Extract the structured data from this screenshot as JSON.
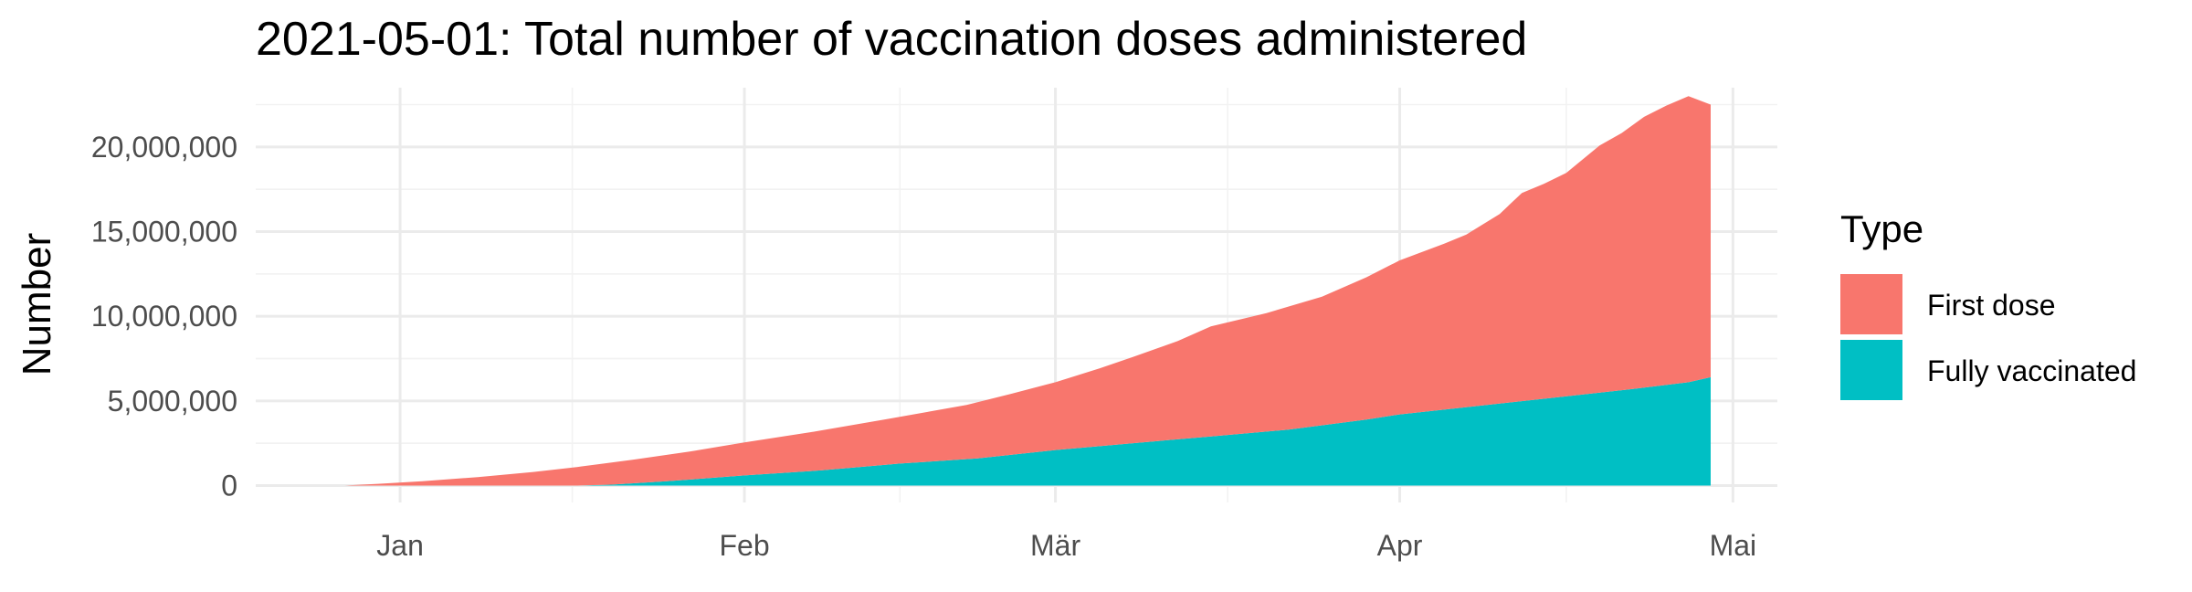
{
  "chart_data": {
    "type": "area",
    "stacked": true,
    "title": "2021-05-01: Total number of vaccination doses administered",
    "xlabel": "",
    "ylabel": "Number",
    "x_ticks": [
      {
        "label": "Jan",
        "date": "2021-01-01"
      },
      {
        "label": "Feb",
        "date": "2021-02-01"
      },
      {
        "label": "Mär",
        "date": "2021-03-01"
      },
      {
        "label": "Apr",
        "date": "2021-04-01"
      },
      {
        "label": "Mai",
        "date": "2021-05-01"
      }
    ],
    "y_ticks": [
      {
        "label": "0",
        "value": 0
      },
      {
        "label": "5,000,000",
        "value": 5000000
      },
      {
        "label": "10,000,000",
        "value": 10000000
      },
      {
        "label": "15,000,000",
        "value": 15000000
      },
      {
        "label": "20,000,000",
        "value": 20000000
      }
    ],
    "xlim": [
      "2020-12-19",
      "2021-05-05"
    ],
    "ylim": [
      -1000000,
      23500000
    ],
    "grid": true,
    "legend": {
      "title": "Type",
      "position": "right"
    },
    "series": [
      {
        "name": "Fully vaccinated",
        "color": "#00BFC4",
        "points": [
          [
            "2020-12-27",
            0
          ],
          [
            "2021-01-17",
            0
          ],
          [
            "2021-01-20",
            50000
          ],
          [
            "2021-01-25",
            250000
          ],
          [
            "2021-02-01",
            600000
          ],
          [
            "2021-02-08",
            900000
          ],
          [
            "2021-02-15",
            1300000
          ],
          [
            "2021-02-22",
            1600000
          ],
          [
            "2021-03-01",
            2100000
          ],
          [
            "2021-03-08",
            2500000
          ],
          [
            "2021-03-15",
            2900000
          ],
          [
            "2021-03-22",
            3300000
          ],
          [
            "2021-03-29",
            3900000
          ],
          [
            "2021-04-01",
            4200000
          ],
          [
            "2021-04-08",
            4700000
          ],
          [
            "2021-04-15",
            5200000
          ],
          [
            "2021-04-22",
            5700000
          ],
          [
            "2021-04-27",
            6100000
          ],
          [
            "2021-04-29",
            6400000
          ]
        ]
      },
      {
        "name": "First dose",
        "color": "#F8766D",
        "points": [
          [
            "2020-12-27",
            0
          ],
          [
            "2020-12-30",
            100000
          ],
          [
            "2021-01-03",
            250000
          ],
          [
            "2021-01-08",
            500000
          ],
          [
            "2021-01-13",
            800000
          ],
          [
            "2021-01-17",
            1100000
          ],
          [
            "2021-01-22",
            1400000
          ],
          [
            "2021-01-27",
            1650000
          ],
          [
            "2021-02-01",
            1950000
          ],
          [
            "2021-02-07",
            2300000
          ],
          [
            "2021-02-14",
            2700000
          ],
          [
            "2021-02-21",
            3200000
          ],
          [
            "2021-02-25",
            3600000
          ],
          [
            "2021-03-01",
            4000000
          ],
          [
            "2021-03-05",
            4600000
          ],
          [
            "2021-03-08",
            5100000
          ],
          [
            "2021-03-12",
            5800000
          ],
          [
            "2021-03-15",
            6500000
          ],
          [
            "2021-03-20",
            7000000
          ],
          [
            "2021-03-25",
            7600000
          ],
          [
            "2021-03-29",
            8400000
          ],
          [
            "2021-04-01",
            9100000
          ],
          [
            "2021-04-05",
            9800000
          ],
          [
            "2021-04-07",
            10200000
          ],
          [
            "2021-04-10",
            11200000
          ],
          [
            "2021-04-12",
            12300000
          ],
          [
            "2021-04-14",
            12700000
          ],
          [
            "2021-04-16",
            13200000
          ],
          [
            "2021-04-19",
            14600000
          ],
          [
            "2021-04-21",
            15200000
          ],
          [
            "2021-04-23",
            16000000
          ],
          [
            "2021-04-25",
            16500000
          ],
          [
            "2021-04-27",
            16900000
          ],
          [
            "2021-04-29",
            16100000
          ]
        ]
      }
    ]
  }
}
